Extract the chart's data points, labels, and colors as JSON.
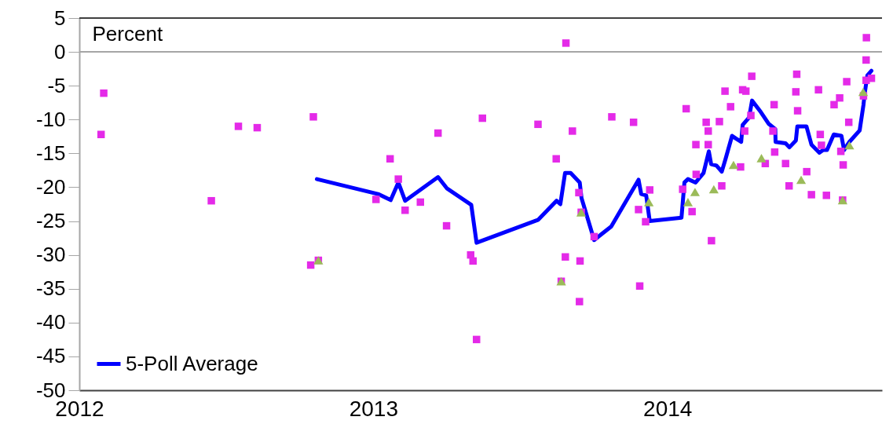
{
  "chart_data": {
    "type": "scatter",
    "ylabel": "Percent",
    "xlim": [
      2012,
      2014.73
    ],
    "xticks": [
      2012,
      2013,
      2014
    ],
    "ylim": [
      -50,
      5
    ],
    "yticks": [
      -50,
      -45,
      -40,
      -35,
      -30,
      -25,
      -20,
      -15,
      -10,
      -5,
      0,
      5
    ],
    "grid": false,
    "legend": "bottom left",
    "ref_lines": [
      {
        "axis": "y",
        "value": 0,
        "color": "#a6a6a6"
      }
    ],
    "series": [
      {
        "name": "5-Poll Average",
        "type": "line",
        "marker": "none",
        "line_style": "solid",
        "color": "#0000ff",
        "x": [
          2012.808,
          2013.016,
          2013.059,
          2013.085,
          2013.108,
          2013.22,
          2013.251,
          2013.333,
          2013.351,
          2013.561,
          2013.623,
          2013.636,
          2013.652,
          2013.671,
          2013.702,
          2013.708,
          2013.751,
          2013.809,
          2013.902,
          2013.911,
          2013.928,
          2013.94,
          2014.048,
          2014.058,
          2014.07,
          2014.096,
          2014.123,
          2014.141,
          2014.149,
          2014.167,
          2014.185,
          2014.198,
          2014.22,
          2014.233,
          2014.251,
          2014.256,
          2014.278,
          2014.288,
          2014.318,
          2014.344,
          2014.367,
          2014.368,
          2014.402,
          2014.415,
          2014.437,
          2014.442,
          2014.473,
          2014.49,
          2014.517,
          2014.53,
          2014.543,
          2014.566,
          2014.592,
          2014.601,
          2014.619,
          2014.654,
          2014.667,
          2014.671,
          2014.68,
          2014.694
        ],
        "values": [
          -18.8,
          -21.0,
          -21.9,
          -19.3,
          -22.0,
          -18.5,
          -20.2,
          -22.6,
          -28.2,
          -24.8,
          -22.0,
          -22.5,
          -17.9,
          -17.9,
          -19.3,
          -21.6,
          -27.8,
          -25.8,
          -18.9,
          -21.0,
          -21.2,
          -25.0,
          -24.5,
          -19.3,
          -18.8,
          -19.3,
          -17.9,
          -14.7,
          -16.6,
          -16.8,
          -17.7,
          -15.8,
          -12.4,
          -12.8,
          -13.3,
          -10.8,
          -9.7,
          -7.2,
          -8.9,
          -10.6,
          -11.4,
          -13.3,
          -13.5,
          -14.1,
          -13.1,
          -11.0,
          -11.0,
          -13.7,
          -14.9,
          -14.5,
          -14.5,
          -12.2,
          -12.4,
          -14.5,
          -13.3,
          -11.6,
          -7.8,
          -6.2,
          -3.5,
          -2.8
        ]
      },
      {
        "marker": "square",
        "color": "#e42ae8",
        "x": [
          2012.083,
          2012.074,
          2012.449,
          2012.541,
          2012.605,
          2012.796,
          2012.787,
          2012.813,
          2013.009,
          2013.057,
          2013.085,
          2013.108,
          2013.16,
          2013.22,
          2013.249,
          2013.331,
          2013.339,
          2013.351,
          2013.371,
          2013.56,
          2013.622,
          2013.639,
          2013.653,
          2013.655,
          2013.677,
          2013.699,
          2013.701,
          2013.703,
          2013.707,
          2013.751,
          2013.811,
          2013.885,
          2013.902,
          2013.906,
          2013.926,
          2013.94,
          2014.052,
          2014.064,
          2014.084,
          2014.097,
          2014.098,
          2014.132,
          2014.139,
          2014.139,
          2014.15,
          2014.177,
          2014.185,
          2014.196,
          2014.215,
          2014.249,
          2014.256,
          2014.263,
          2014.267,
          2014.284,
          2014.287,
          2014.333,
          2014.359,
          2014.363,
          2014.365,
          2014.402,
          2014.414,
          2014.437,
          2014.44,
          2014.443,
          2014.474,
          2014.49,
          2014.514,
          2014.52,
          2014.524,
          2014.541,
          2014.567,
          2014.586,
          2014.59,
          2014.596,
          2014.598,
          2014.61,
          2014.617,
          2014.667,
          2014.676,
          2014.676,
          2014.677,
          2014.694
        ],
        "values": [
          -6.1,
          -12.2,
          -22.0,
          -11.0,
          -11.2,
          -9.6,
          -31.5,
          -30.8,
          -21.8,
          -15.8,
          -18.8,
          -23.4,
          -22.2,
          -12.0,
          -25.7,
          -30.0,
          -30.9,
          -42.5,
          -9.8,
          -10.7,
          -15.8,
          -33.9,
          -30.3,
          1.3,
          -11.7,
          -20.8,
          -36.9,
          -30.9,
          -23.7,
          -27.3,
          -9.6,
          -10.4,
          -23.3,
          -34.6,
          -25.1,
          -20.4,
          -20.3,
          -8.4,
          -23.6,
          -13.7,
          -18.1,
          -10.4,
          -11.7,
          -13.7,
          -27.9,
          -10.3,
          -19.8,
          -5.8,
          -8.1,
          -17.0,
          -5.6,
          -11.7,
          -5.8,
          -9.4,
          -3.6,
          -16.5,
          -11.7,
          -7.8,
          -14.8,
          -16.5,
          -19.8,
          -5.9,
          -3.3,
          -8.7,
          -17.7,
          -21.1,
          -5.6,
          -12.2,
          -13.8,
          -21.2,
          -7.8,
          -6.8,
          -14.7,
          -21.9,
          -16.7,
          -4.4,
          -10.4,
          -6.5,
          -1.2,
          -4.2,
          2.1,
          -3.9
        ]
      },
      {
        "marker": "triangle",
        "color": "#9bbb59",
        "x": [
          2012.813,
          2013.639,
          2013.707,
          2013.937,
          2014.07,
          2014.094,
          2014.158,
          2014.225,
          2014.32,
          2014.455,
          2014.596,
          2014.619,
          2014.666
        ],
        "values": [
          -30.8,
          -33.9,
          -23.7,
          -22.2,
          -22.2,
          -20.7,
          -20.3,
          -16.7,
          -15.7,
          -18.9,
          -21.9,
          -13.8,
          -5.9
        ]
      }
    ]
  }
}
